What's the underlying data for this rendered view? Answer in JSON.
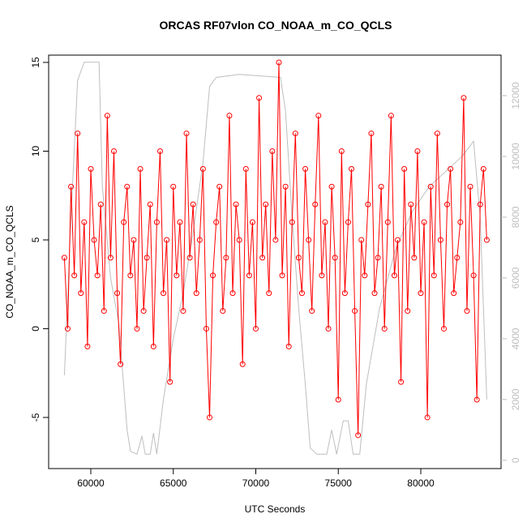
{
  "chart_data": {
    "type": "line",
    "title": "ORCAS RF07vlon CO_NOAA_m_CO_QCLS",
    "x_label": "UTC Seconds",
    "y_label": "CO_NOAA_m_CO_QCLS",
    "xlim": [
      57445,
      84865
    ],
    "xticks": [
      60000,
      65000,
      70000,
      75000,
      80000
    ],
    "ylim": [
      -7.88,
      15.41
    ],
    "yticks": [
      -5,
      0,
      5,
      10,
      15
    ],
    "y2lim": [
      -272,
      13333
    ],
    "y2ticks": [
      0,
      2000,
      4000,
      6000,
      8000,
      10000,
      12000
    ],
    "series": [
      {
        "color": "#bebebe",
        "axis": "y2",
        "x": [
          58400,
          58800,
          59200,
          59600,
          60500,
          60700,
          61200,
          61700,
          62200,
          62400,
          62800,
          63100,
          63300,
          63600,
          63800,
          64000,
          64400,
          65000,
          65600,
          66200,
          66800,
          67200,
          67600,
          69000,
          71500,
          71800,
          72200,
          72600,
          73000,
          73300,
          73700,
          74300,
          74600,
          74900,
          75300,
          75600,
          75900,
          76300,
          76700,
          77500,
          78500,
          79500,
          80500,
          81500,
          82500,
          83200,
          83600,
          84000
        ],
        "values": [
          2800,
          8000,
          12500,
          13100,
          13100,
          9000,
          6000,
          4500,
          1000,
          300,
          200,
          800,
          200,
          200,
          900,
          200,
          2000,
          4000,
          5500,
          7500,
          9800,
          12300,
          12600,
          12700,
          12600,
          11500,
          8000,
          5000,
          2500,
          400,
          200,
          200,
          1000,
          200,
          1300,
          1300,
          200,
          200,
          2500,
          5000,
          7000,
          8200,
          9000,
          9500,
          10000,
          10500,
          8000,
          2000
        ]
      },
      {
        "color": "#ff0000",
        "axis": "y",
        "x": [
          58400,
          58600,
          58800,
          59000,
          59200,
          59400,
          59600,
          59800,
          60000,
          60200,
          60400,
          60600,
          60800,
          61000,
          61200,
          61400,
          61600,
          61800,
          62000,
          62200,
          62400,
          62600,
          62800,
          63000,
          63200,
          63400,
          63600,
          63800,
          64000,
          64200,
          64400,
          64600,
          64800,
          65000,
          65200,
          65400,
          65600,
          65800,
          66000,
          66200,
          66400,
          66600,
          66800,
          67000,
          67200,
          67400,
          67600,
          67800,
          68000,
          68200,
          68400,
          68600,
          68800,
          69000,
          69200,
          69400,
          69600,
          69800,
          70000,
          70200,
          70400,
          70600,
          70800,
          71000,
          71200,
          71400,
          71600,
          71800,
          72000,
          72200,
          72400,
          72600,
          72800,
          73000,
          73200,
          73400,
          73600,
          73800,
          74000,
          74200,
          74400,
          74600,
          74800,
          75000,
          75200,
          75400,
          75600,
          75800,
          76000,
          76200,
          76400,
          76600,
          76800,
          77000,
          77200,
          77400,
          77600,
          77800,
          78000,
          78200,
          78400,
          78600,
          78800,
          79000,
          79200,
          79400,
          79600,
          79800,
          80000,
          80200,
          80400,
          80600,
          80800,
          81000,
          81200,
          81400,
          81600,
          81800,
          82000,
          82200,
          82400,
          82600,
          82800,
          83000,
          83200,
          83400,
          83600,
          83800,
          84000
        ],
        "values": [
          4,
          0,
          8,
          3,
          11,
          2,
          6,
          -1,
          9,
          5,
          3,
          7,
          1,
          12,
          4,
          10,
          2,
          -2,
          6,
          8,
          3,
          5,
          0,
          9,
          1,
          4,
          7,
          -1,
          6,
          10,
          2,
          5,
          -3,
          8,
          3,
          6,
          1,
          11,
          4,
          7,
          2,
          5,
          9,
          0,
          -5,
          3,
          6,
          8,
          1,
          4,
          12,
          2,
          7,
          5,
          -2,
          9,
          3,
          6,
          0,
          13,
          4,
          7,
          2,
          10,
          5,
          15,
          3,
          8,
          -1,
          6,
          11,
          4,
          2,
          9,
          5,
          1,
          7,
          12,
          3,
          6,
          0,
          8,
          4,
          -4,
          10,
          2,
          6,
          9,
          1,
          -6,
          5,
          3,
          7,
          11,
          2,
          4,
          8,
          0,
          6,
          12,
          3,
          5,
          -3,
          9,
          1,
          7,
          4,
          10,
          2,
          6,
          -5,
          8,
          3,
          11,
          5,
          0,
          7,
          9,
          2,
          4,
          6,
          13,
          1,
          8,
          3,
          -4,
          7,
          9,
          5
        ]
      }
    ]
  }
}
